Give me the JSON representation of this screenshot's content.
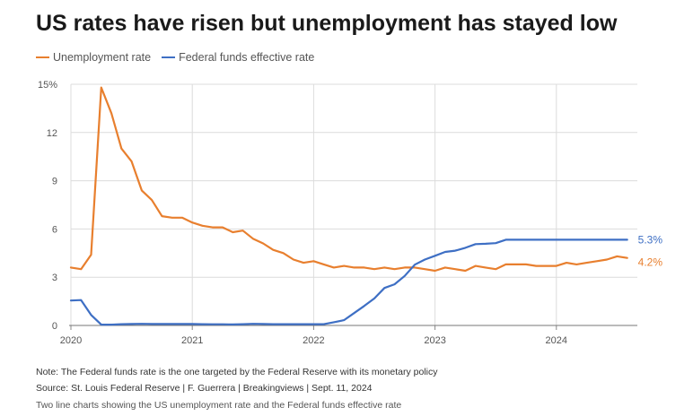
{
  "chart_data": {
    "type": "line",
    "title": "US rates have risen but unemployment has stayed low",
    "x_ticks": [
      "2020",
      "2021",
      "2022",
      "2023",
      "2024"
    ],
    "x_range": [
      "2020-01",
      "2024-08"
    ],
    "y_ticks": [
      "0",
      "3",
      "6",
      "9",
      "12",
      "15%"
    ],
    "ylim": [
      0,
      15
    ],
    "grid": "vertical and horizontal",
    "legend_position": "top-left",
    "series": [
      {
        "name": "Unemployment rate",
        "color": "#e87f2e",
        "end_label": "4.2%",
        "points": [
          [
            "2020-01",
            3.6
          ],
          [
            "2020-02",
            3.5
          ],
          [
            "2020-03",
            4.4
          ],
          [
            "2020-04",
            14.8
          ],
          [
            "2020-05",
            13.2
          ],
          [
            "2020-06",
            11.0
          ],
          [
            "2020-07",
            10.2
          ],
          [
            "2020-08",
            8.4
          ],
          [
            "2020-09",
            7.8
          ],
          [
            "2020-10",
            6.8
          ],
          [
            "2020-11",
            6.7
          ],
          [
            "2020-12",
            6.7
          ],
          [
            "2021-01",
            6.4
          ],
          [
            "2021-02",
            6.2
          ],
          [
            "2021-03",
            6.1
          ],
          [
            "2021-04",
            6.1
          ],
          [
            "2021-05",
            5.8
          ],
          [
            "2021-06",
            5.9
          ],
          [
            "2021-07",
            5.4
          ],
          [
            "2021-08",
            5.1
          ],
          [
            "2021-09",
            4.7
          ],
          [
            "2021-10",
            4.5
          ],
          [
            "2021-11",
            4.1
          ],
          [
            "2021-12",
            3.9
          ],
          [
            "2022-01",
            4.0
          ],
          [
            "2022-02",
            3.8
          ],
          [
            "2022-03",
            3.6
          ],
          [
            "2022-04",
            3.7
          ],
          [
            "2022-05",
            3.6
          ],
          [
            "2022-06",
            3.6
          ],
          [
            "2022-07",
            3.5
          ],
          [
            "2022-08",
            3.6
          ],
          [
            "2022-09",
            3.5
          ],
          [
            "2022-10",
            3.6
          ],
          [
            "2022-11",
            3.6
          ],
          [
            "2022-12",
            3.5
          ],
          [
            "2023-01",
            3.4
          ],
          [
            "2023-02",
            3.6
          ],
          [
            "2023-03",
            3.5
          ],
          [
            "2023-04",
            3.4
          ],
          [
            "2023-05",
            3.7
          ],
          [
            "2023-06",
            3.6
          ],
          [
            "2023-07",
            3.5
          ],
          [
            "2023-08",
            3.8
          ],
          [
            "2023-09",
            3.8
          ],
          [
            "2023-10",
            3.8
          ],
          [
            "2023-11",
            3.7
          ],
          [
            "2023-12",
            3.7
          ],
          [
            "2024-01",
            3.7
          ],
          [
            "2024-02",
            3.9
          ],
          [
            "2024-03",
            3.8
          ],
          [
            "2024-04",
            3.9
          ],
          [
            "2024-05",
            4.0
          ],
          [
            "2024-06",
            4.1
          ],
          [
            "2024-07",
            4.3
          ],
          [
            "2024-08",
            4.2
          ]
        ]
      },
      {
        "name": "Federal funds effective rate",
        "color": "#3e6fc4",
        "end_label": "5.3%",
        "points": [
          [
            "2020-01",
            1.55
          ],
          [
            "2020-02",
            1.58
          ],
          [
            "2020-03",
            0.65
          ],
          [
            "2020-04",
            0.05
          ],
          [
            "2020-05",
            0.05
          ],
          [
            "2020-06",
            0.08
          ],
          [
            "2020-07",
            0.09
          ],
          [
            "2020-08",
            0.1
          ],
          [
            "2020-09",
            0.09
          ],
          [
            "2020-10",
            0.09
          ],
          [
            "2020-11",
            0.09
          ],
          [
            "2020-12",
            0.09
          ],
          [
            "2021-01",
            0.09
          ],
          [
            "2021-02",
            0.08
          ],
          [
            "2021-03",
            0.07
          ],
          [
            "2021-04",
            0.07
          ],
          [
            "2021-05",
            0.06
          ],
          [
            "2021-06",
            0.08
          ],
          [
            "2021-07",
            0.1
          ],
          [
            "2021-08",
            0.09
          ],
          [
            "2021-09",
            0.08
          ],
          [
            "2021-10",
            0.08
          ],
          [
            "2021-11",
            0.08
          ],
          [
            "2021-12",
            0.08
          ],
          [
            "2022-01",
            0.08
          ],
          [
            "2022-02",
            0.08
          ],
          [
            "2022-03",
            0.2
          ],
          [
            "2022-04",
            0.33
          ],
          [
            "2022-05",
            0.77
          ],
          [
            "2022-06",
            1.21
          ],
          [
            "2022-07",
            1.68
          ],
          [
            "2022-08",
            2.33
          ],
          [
            "2022-09",
            2.56
          ],
          [
            "2022-10",
            3.08
          ],
          [
            "2022-11",
            3.78
          ],
          [
            "2022-12",
            4.1
          ],
          [
            "2023-01",
            4.33
          ],
          [
            "2023-02",
            4.57
          ],
          [
            "2023-03",
            4.65
          ],
          [
            "2023-04",
            4.83
          ],
          [
            "2023-05",
            5.06
          ],
          [
            "2023-06",
            5.08
          ],
          [
            "2023-07",
            5.12
          ],
          [
            "2023-08",
            5.33
          ],
          [
            "2023-09",
            5.33
          ],
          [
            "2023-10",
            5.33
          ],
          [
            "2023-11",
            5.33
          ],
          [
            "2023-12",
            5.33
          ],
          [
            "2024-01",
            5.33
          ],
          [
            "2024-02",
            5.33
          ],
          [
            "2024-03",
            5.33
          ],
          [
            "2024-04",
            5.33
          ],
          [
            "2024-05",
            5.33
          ],
          [
            "2024-06",
            5.33
          ],
          [
            "2024-07",
            5.33
          ],
          [
            "2024-08",
            5.33
          ]
        ]
      }
    ]
  },
  "notes": {
    "note": "Note: The Federal funds rate is the one targeted by the Federal Reserve with its monetary policy",
    "source": "Source: St. Louis Federal Reserve | F. Guerrera | Breakingviews | Sept. 11, 2024"
  },
  "caption": "Two line charts showing the US unemployment rate and the Federal funds effective rate"
}
